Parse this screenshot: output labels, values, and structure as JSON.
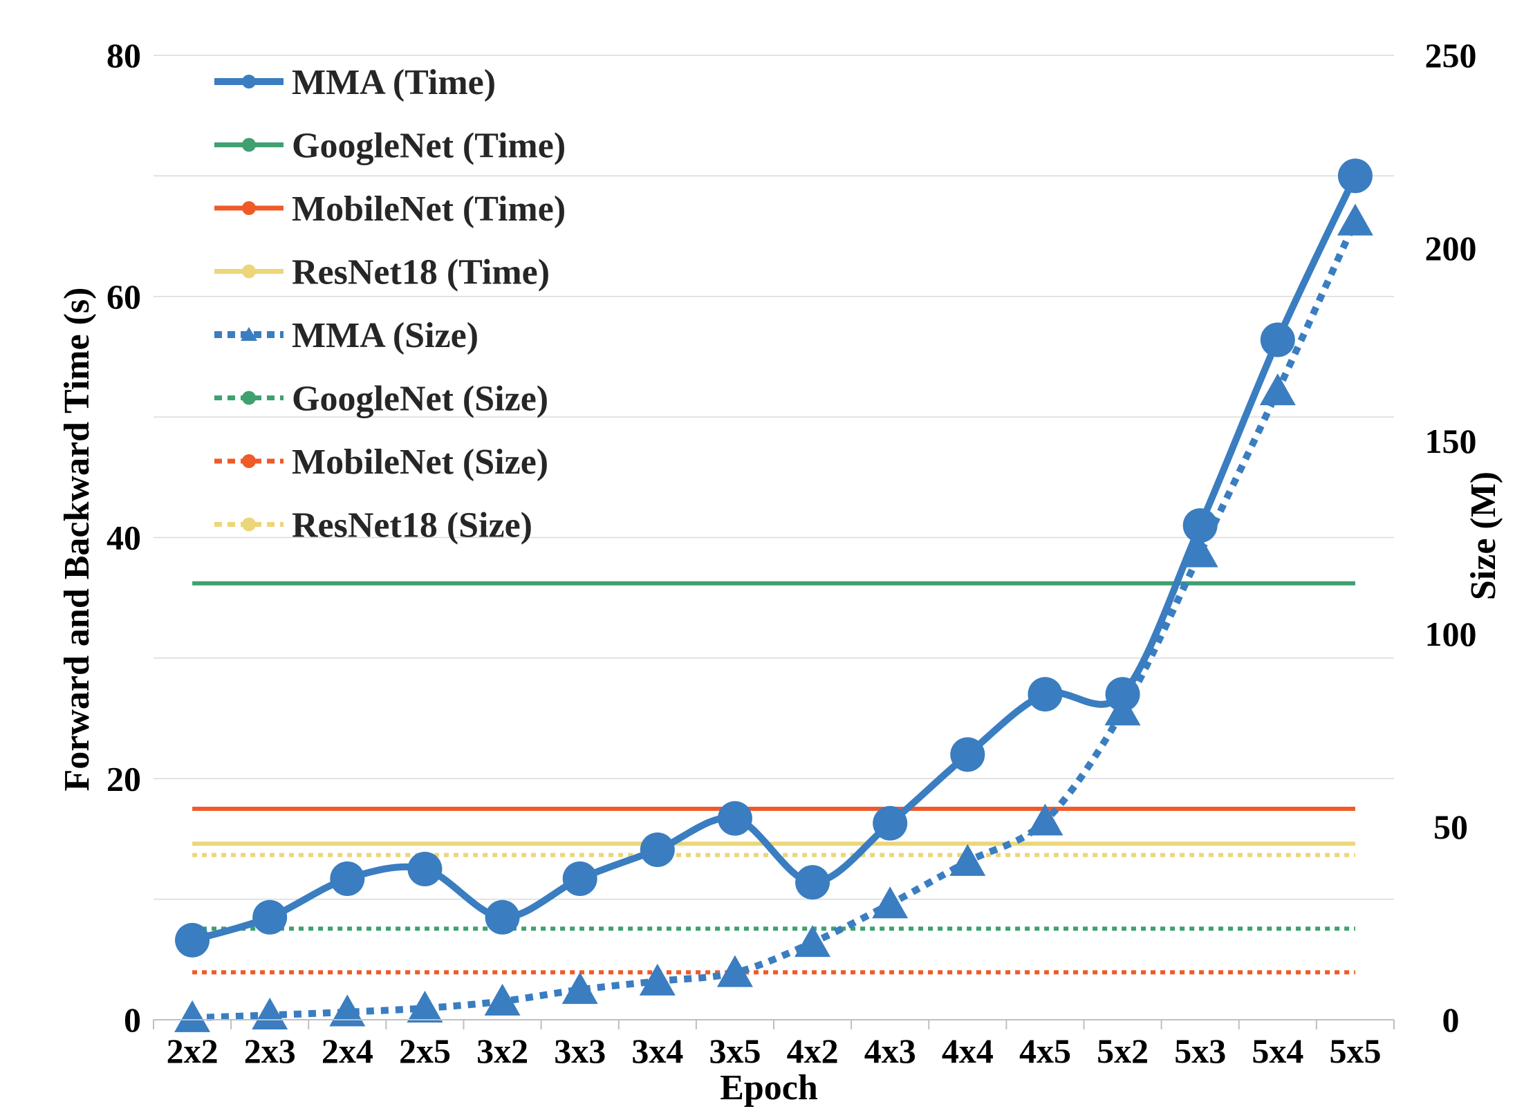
{
  "chart_data": {
    "type": "line",
    "categories": [
      "2x2",
      "2x3",
      "2x4",
      "2x5",
      "3x2",
      "3x3",
      "3x4",
      "3x5",
      "4x2",
      "4x3",
      "4x4",
      "4x5",
      "5x2",
      "5x3",
      "5x4",
      "5x5"
    ],
    "xlabel": "Epoch",
    "ylabel": "Forward and Backward Time (s)",
    "y2label": "Size (M)",
    "ylim": [
      0,
      80
    ],
    "y2lim": [
      0,
      250
    ],
    "yticks": [
      "0",
      "20",
      "40",
      "60",
      "80"
    ],
    "y2ticks": [
      "0",
      "50",
      "100",
      "150",
      "200",
      "250"
    ],
    "grid": true,
    "legend_position": "top-left",
    "series": [
      {
        "name": "MMA (Time)",
        "axis": "left",
        "style": "solid",
        "marker": "circle",
        "color": "#3a7dc0",
        "values": [
          6.6,
          8.5,
          11.7,
          12.5,
          8.5,
          11.7,
          14.1,
          16.7,
          11.4,
          16.3,
          22.0,
          27.0,
          27.0,
          41.0,
          56.4,
          70.0
        ]
      },
      {
        "name": "GoogleNet (Time)",
        "axis": "left",
        "style": "solid",
        "marker": "none",
        "color": "#3fa070",
        "values": [
          36.2,
          36.2,
          36.2,
          36.2,
          36.2,
          36.2,
          36.2,
          36.2,
          36.2,
          36.2,
          36.2,
          36.2,
          36.2,
          36.2,
          36.2,
          36.2
        ]
      },
      {
        "name": "MobileNet (Time)",
        "axis": "left",
        "style": "solid",
        "marker": "none",
        "color": "#ef5a28",
        "values": [
          17.5,
          17.5,
          17.5,
          17.5,
          17.5,
          17.5,
          17.5,
          17.5,
          17.5,
          17.5,
          17.5,
          17.5,
          17.5,
          17.5,
          17.5,
          17.5
        ]
      },
      {
        "name": "ResNet18 (Time)",
        "axis": "left",
        "style": "solid",
        "marker": "none",
        "color": "#ecd67a",
        "values": [
          14.6,
          14.6,
          14.6,
          14.6,
          14.6,
          14.6,
          14.6,
          14.6,
          14.6,
          14.6,
          14.6,
          14.6,
          14.6,
          14.6,
          14.6,
          14.6
        ]
      },
      {
        "name": "MMA (Size)",
        "axis": "right",
        "style": "dotted",
        "marker": "triangle",
        "color": "#3a7dc0",
        "values": [
          0.5,
          1.2,
          2.0,
          3.0,
          4.8,
          7.8,
          10.0,
          12.2,
          20.0,
          30.0,
          41.0,
          51.5,
          80.0,
          121.0,
          163.0,
          207.0
        ]
      },
      {
        "name": "GoogleNet (Size)",
        "axis": "right",
        "style": "dotted",
        "marker": "circle",
        "color": "#3fa070",
        "values": [
          23.6,
          23.6,
          23.6,
          23.6,
          23.6,
          23.6,
          23.6,
          23.6,
          23.6,
          23.6,
          23.6,
          23.6,
          23.6,
          23.6,
          23.6,
          23.6
        ]
      },
      {
        "name": "MobileNet (Size)",
        "axis": "right",
        "style": "dotted",
        "marker": "circle",
        "color": "#ef5a28",
        "values": [
          12.3,
          12.3,
          12.3,
          12.3,
          12.3,
          12.3,
          12.3,
          12.3,
          12.3,
          12.3,
          12.3,
          12.3,
          12.3,
          12.3,
          12.3,
          12.3
        ]
      },
      {
        "name": "ResNet18 (Size)",
        "axis": "right",
        "style": "dotted",
        "marker": "circle",
        "color": "#ecd67a",
        "values": [
          42.7,
          42.7,
          42.7,
          42.7,
          42.7,
          42.7,
          42.7,
          42.7,
          42.7,
          42.7,
          42.7,
          42.7,
          42.7,
          42.7,
          42.7,
          42.7
        ]
      }
    ]
  }
}
